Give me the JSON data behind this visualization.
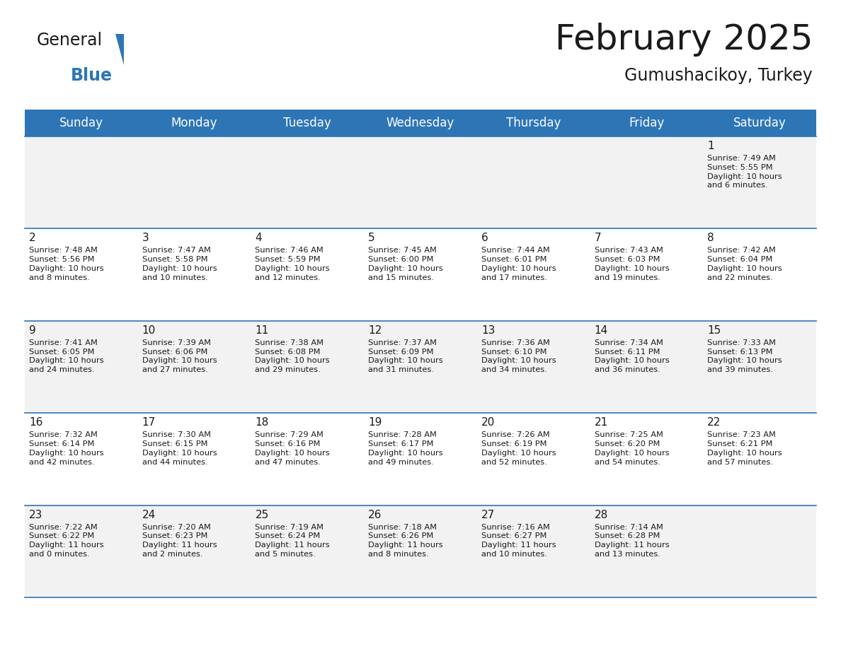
{
  "title": "February 2025",
  "subtitle": "Gumushacikoy, Turkey",
  "header_bg": "#2e75b6",
  "header_text": "#ffffff",
  "row_bg_even": "#f2f2f2",
  "row_bg_odd": "#ffffff",
  "separator_color": "#2e75b6",
  "text_color": "#1a1a1a",
  "day_headers": [
    "Sunday",
    "Monday",
    "Tuesday",
    "Wednesday",
    "Thursday",
    "Friday",
    "Saturday"
  ],
  "calendar_data": [
    [
      "",
      "",
      "",
      "",
      "",
      "",
      "1\nSunrise: 7:49 AM\nSunset: 5:55 PM\nDaylight: 10 hours\nand 6 minutes."
    ],
    [
      "2\nSunrise: 7:48 AM\nSunset: 5:56 PM\nDaylight: 10 hours\nand 8 minutes.",
      "3\nSunrise: 7:47 AM\nSunset: 5:58 PM\nDaylight: 10 hours\nand 10 minutes.",
      "4\nSunrise: 7:46 AM\nSunset: 5:59 PM\nDaylight: 10 hours\nand 12 minutes.",
      "5\nSunrise: 7:45 AM\nSunset: 6:00 PM\nDaylight: 10 hours\nand 15 minutes.",
      "6\nSunrise: 7:44 AM\nSunset: 6:01 PM\nDaylight: 10 hours\nand 17 minutes.",
      "7\nSunrise: 7:43 AM\nSunset: 6:03 PM\nDaylight: 10 hours\nand 19 minutes.",
      "8\nSunrise: 7:42 AM\nSunset: 6:04 PM\nDaylight: 10 hours\nand 22 minutes."
    ],
    [
      "9\nSunrise: 7:41 AM\nSunset: 6:05 PM\nDaylight: 10 hours\nand 24 minutes.",
      "10\nSunrise: 7:39 AM\nSunset: 6:06 PM\nDaylight: 10 hours\nand 27 minutes.",
      "11\nSunrise: 7:38 AM\nSunset: 6:08 PM\nDaylight: 10 hours\nand 29 minutes.",
      "12\nSunrise: 7:37 AM\nSunset: 6:09 PM\nDaylight: 10 hours\nand 31 minutes.",
      "13\nSunrise: 7:36 AM\nSunset: 6:10 PM\nDaylight: 10 hours\nand 34 minutes.",
      "14\nSunrise: 7:34 AM\nSunset: 6:11 PM\nDaylight: 10 hours\nand 36 minutes.",
      "15\nSunrise: 7:33 AM\nSunset: 6:13 PM\nDaylight: 10 hours\nand 39 minutes."
    ],
    [
      "16\nSunrise: 7:32 AM\nSunset: 6:14 PM\nDaylight: 10 hours\nand 42 minutes.",
      "17\nSunrise: 7:30 AM\nSunset: 6:15 PM\nDaylight: 10 hours\nand 44 minutes.",
      "18\nSunrise: 7:29 AM\nSunset: 6:16 PM\nDaylight: 10 hours\nand 47 minutes.",
      "19\nSunrise: 7:28 AM\nSunset: 6:17 PM\nDaylight: 10 hours\nand 49 minutes.",
      "20\nSunrise: 7:26 AM\nSunset: 6:19 PM\nDaylight: 10 hours\nand 52 minutes.",
      "21\nSunrise: 7:25 AM\nSunset: 6:20 PM\nDaylight: 10 hours\nand 54 minutes.",
      "22\nSunrise: 7:23 AM\nSunset: 6:21 PM\nDaylight: 10 hours\nand 57 minutes."
    ],
    [
      "23\nSunrise: 7:22 AM\nSunset: 6:22 PM\nDaylight: 11 hours\nand 0 minutes.",
      "24\nSunrise: 7:20 AM\nSunset: 6:23 PM\nDaylight: 11 hours\nand 2 minutes.",
      "25\nSunrise: 7:19 AM\nSunset: 6:24 PM\nDaylight: 11 hours\nand 5 minutes.",
      "26\nSunrise: 7:18 AM\nSunset: 6:26 PM\nDaylight: 11 hours\nand 8 minutes.",
      "27\nSunrise: 7:16 AM\nSunset: 6:27 PM\nDaylight: 11 hours\nand 10 minutes.",
      "28\nSunrise: 7:14 AM\nSunset: 6:28 PM\nDaylight: 11 hours\nand 13 minutes.",
      ""
    ]
  ],
  "logo_general_color": "#1a1a1a",
  "logo_blue_color": "#2e75b6",
  "logo_triangle_color": "#2e75b6"
}
